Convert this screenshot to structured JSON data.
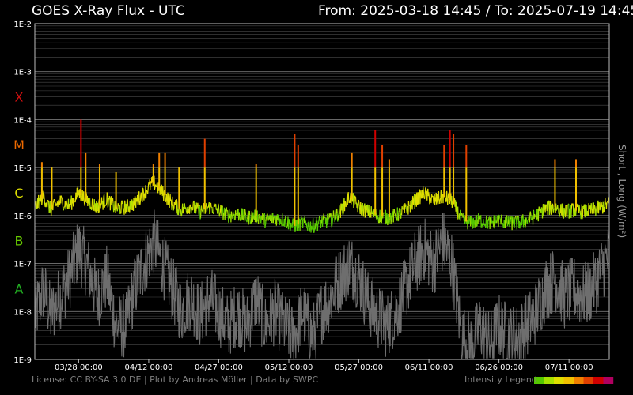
{
  "header": {
    "title": "GOES X-Ray Flux - UTC",
    "range": "From: 2025-03-18 14:45  /  To: 2025-07-19 14:45"
  },
  "footer": {
    "credit": "License: CC BY-SA 3.0 DE | Plot by Andreas Möller | Data by SWPC",
    "legend_label": "Intensity Legend"
  },
  "colors": {
    "background": "#000000",
    "grid": "#4a4a4a",
    "long_channel_scale": [
      "#55c800",
      "#a6e000",
      "#dede00",
      "#f0c000",
      "#f08000",
      "#e04000",
      "#d00000",
      "#b00060"
    ],
    "short_channel": "#6e6e6e",
    "class_colors": {
      "X": "#d01010",
      "M": "#ee6a00",
      "C": "#dddd00",
      "B": "#66c800",
      "A": "#22b022"
    }
  },
  "chart_data": {
    "type": "line",
    "title": "GOES X-Ray Flux - UTC",
    "ylabel": "Short , Long (W/m²)",
    "y_scale": "log",
    "ylim": [
      1e-09,
      0.01
    ],
    "x_range": [
      "2025-03-18 14:45",
      "2025-07-19 14:45"
    ],
    "y_tick_labels": [
      "1E-2",
      "1E-3",
      "1E-4",
      "1E-5",
      "1E-6",
      "1E-7",
      "1E-8",
      "1E-9"
    ],
    "y_tick_values": [
      0.01,
      0.001,
      0.0001,
      1e-05,
      1e-06,
      1e-07,
      1e-08,
      1e-09
    ],
    "flare_classes": [
      {
        "label": "X",
        "value": 0.0003
      },
      {
        "label": "M",
        "value": 3e-05
      },
      {
        "label": "C",
        "value": 3e-06
      },
      {
        "label": "B",
        "value": 3e-07
      },
      {
        "label": "A",
        "value": 3e-08
      }
    ],
    "x_ticks": [
      {
        "label": "03/28 00:00",
        "t": "2025-03-28 00:00"
      },
      {
        "label": "04/12 00:00",
        "t": "2025-04-12 00:00"
      },
      {
        "label": "04/27 00:00",
        "t": "2025-04-27 00:00"
      },
      {
        "label": "05/12 00:00",
        "t": "2025-05-12 00:00"
      },
      {
        "label": "05/27 00:00",
        "t": "2025-05-27 00:00"
      },
      {
        "label": "06/11 00:00",
        "t": "2025-06-11 00:00"
      },
      {
        "label": "06/26 00:00",
        "t": "2025-06-26 00:00"
      },
      {
        "label": "07/11 00:00",
        "t": "2025-07-11 00:00"
      }
    ],
    "grid": true,
    "series": [
      {
        "channel": "long",
        "points": [
          [
            "2025-03-18 14:45",
            1.5e-06
          ],
          [
            "2025-03-20 12:00",
            2.5e-06
          ],
          [
            "2025-03-22 00:00",
            1.3e-06
          ],
          [
            "2025-03-24 00:00",
            2e-06
          ],
          [
            "2025-03-26 00:00",
            1.6e-06
          ],
          [
            "2025-03-28 00:00",
            3e-06
          ],
          [
            "2025-03-30 00:00",
            2e-06
          ],
          [
            "2025-04-01 00:00",
            1.5e-06
          ],
          [
            "2025-04-03 00:00",
            2.2e-06
          ],
          [
            "2025-04-05 00:00",
            1.4e-06
          ],
          [
            "2025-04-07 00:00",
            1.5e-06
          ],
          [
            "2025-04-09 00:00",
            1.8e-06
          ],
          [
            "2025-04-11 00:00",
            3e-06
          ],
          [
            "2025-04-13 00:00",
            5e-06
          ],
          [
            "2025-04-15 00:00",
            3e-06
          ],
          [
            "2025-04-17 00:00",
            1.8e-06
          ],
          [
            "2025-04-19 00:00",
            1.3e-06
          ],
          [
            "2025-04-21 00:00",
            1.6e-06
          ],
          [
            "2025-04-23 00:00",
            1.2e-06
          ],
          [
            "2025-04-25 00:00",
            1.5e-06
          ],
          [
            "2025-04-27 00:00",
            1.3e-06
          ],
          [
            "2025-04-29 00:00",
            1e-06
          ],
          [
            "2025-05-01 00:00",
            1.1e-06
          ],
          [
            "2025-05-03 00:00",
            9e-07
          ],
          [
            "2025-05-05 00:00",
            1e-06
          ],
          [
            "2025-05-07 00:00",
            8e-07
          ],
          [
            "2025-05-09 00:00",
            9e-07
          ],
          [
            "2025-05-11 00:00",
            8e-07
          ],
          [
            "2025-05-13 00:00",
            6e-07
          ],
          [
            "2025-05-15 00:00",
            7e-07
          ],
          [
            "2025-05-17 00:00",
            6e-07
          ],
          [
            "2025-05-19 00:00",
            7.5e-07
          ],
          [
            "2025-05-21 00:00",
            8e-07
          ],
          [
            "2025-05-23 00:00",
            1.2e-06
          ],
          [
            "2025-05-25 00:00",
            2.5e-06
          ],
          [
            "2025-05-27 00:00",
            1.5e-06
          ],
          [
            "2025-05-29 00:00",
            1.2e-06
          ],
          [
            "2025-05-31 00:00",
            1e-06
          ],
          [
            "2025-06-02 00:00",
            9e-07
          ],
          [
            "2025-06-04 00:00",
            1e-06
          ],
          [
            "2025-06-06 00:00",
            1.3e-06
          ],
          [
            "2025-06-08 00:00",
            2e-06
          ],
          [
            "2025-06-10 00:00",
            3e-06
          ],
          [
            "2025-06-12 00:00",
            2e-06
          ],
          [
            "2025-06-14 00:00",
            2.5e-06
          ],
          [
            "2025-06-16 00:00",
            2e-06
          ],
          [
            "2025-06-18 00:00",
            8e-07
          ],
          [
            "2025-06-20 00:00",
            7e-07
          ],
          [
            "2025-06-22 00:00",
            8e-07
          ],
          [
            "2025-06-24 00:00",
            7e-07
          ],
          [
            "2025-06-26 00:00",
            8e-07
          ],
          [
            "2025-06-28 00:00",
            7e-07
          ],
          [
            "2025-06-30 00:00",
            7e-07
          ],
          [
            "2025-07-02 00:00",
            8e-07
          ],
          [
            "2025-07-04 00:00",
            1e-06
          ],
          [
            "2025-07-06 00:00",
            1.4e-06
          ],
          [
            "2025-07-08 00:00",
            1.5e-06
          ],
          [
            "2025-07-10 00:00",
            1.2e-06
          ],
          [
            "2025-07-12 00:00",
            1.3e-06
          ],
          [
            "2025-07-14 00:00",
            1.2e-06
          ],
          [
            "2025-07-16 00:00",
            1.3e-06
          ],
          [
            "2025-07-18 00:00",
            1.5e-06
          ],
          [
            "2025-07-19 14:45",
            1.8e-06
          ]
        ]
      },
      {
        "channel": "short",
        "points": [
          [
            "2025-03-18 14:45",
            8e-09
          ],
          [
            "2025-03-20 12:00",
            3e-08
          ],
          [
            "2025-03-22 00:00",
            8e-09
          ],
          [
            "2025-03-24 00:00",
            2e-08
          ],
          [
            "2025-03-26 00:00",
            5e-08
          ],
          [
            "2025-03-28 00:00",
            2e-07
          ],
          [
            "2025-03-30 00:00",
            8e-08
          ],
          [
            "2025-04-01 00:00",
            2e-08
          ],
          [
            "2025-04-03 00:00",
            5e-08
          ],
          [
            "2025-04-05 00:00",
            5e-09
          ],
          [
            "2025-04-07 00:00",
            5e-09
          ],
          [
            "2025-04-09 00:00",
            3e-08
          ],
          [
            "2025-04-11 00:00",
            1e-07
          ],
          [
            "2025-04-13 00:00",
            3e-07
          ],
          [
            "2025-04-15 00:00",
            1e-07
          ],
          [
            "2025-04-17 00:00",
            3e-08
          ],
          [
            "2025-04-19 00:00",
            1e-08
          ],
          [
            "2025-04-21 00:00",
            2e-08
          ],
          [
            "2025-04-23 00:00",
            8e-09
          ],
          [
            "2025-04-25 00:00",
            2e-08
          ],
          [
            "2025-04-27 00:00",
            1e-08
          ],
          [
            "2025-04-29 00:00",
            5e-09
          ],
          [
            "2025-05-01 00:00",
            1e-08
          ],
          [
            "2025-05-03 00:00",
            5e-09
          ],
          [
            "2025-05-05 00:00",
            2e-08
          ],
          [
            "2025-05-07 00:00",
            5e-09
          ],
          [
            "2025-05-09 00:00",
            1e-08
          ],
          [
            "2025-05-11 00:00",
            5e-09
          ],
          [
            "2025-05-13 00:00",
            3e-09
          ],
          [
            "2025-05-15 00:00",
            1e-08
          ],
          [
            "2025-05-17 00:00",
            3e-09
          ],
          [
            "2025-05-19 00:00",
            1e-08
          ],
          [
            "2025-05-21 00:00",
            2e-08
          ],
          [
            "2025-05-23 00:00",
            5e-08
          ],
          [
            "2025-05-25 00:00",
            1e-07
          ],
          [
            "2025-05-27 00:00",
            5e-08
          ],
          [
            "2025-05-29 00:00",
            1.5e-08
          ],
          [
            "2025-05-31 00:00",
            8e-09
          ],
          [
            "2025-06-02 00:00",
            5e-09
          ],
          [
            "2025-06-04 00:00",
            1e-08
          ],
          [
            "2025-06-06 00:00",
            3e-08
          ],
          [
            "2025-06-08 00:00",
            1e-07
          ],
          [
            "2025-06-10 00:00",
            2e-07
          ],
          [
            "2025-06-12 00:00",
            1e-07
          ],
          [
            "2025-06-14 00:00",
            3e-07
          ],
          [
            "2025-06-16 00:00",
            1e-07
          ],
          [
            "2025-06-18 00:00",
            3e-09
          ],
          [
            "2025-06-20 00:00",
            2e-09
          ],
          [
            "2025-06-22 00:00",
            5e-09
          ],
          [
            "2025-06-24 00:00",
            2e-09
          ],
          [
            "2025-06-26 00:00",
            5e-09
          ],
          [
            "2025-06-28 00:00",
            3e-09
          ],
          [
            "2025-06-30 00:00",
            3e-09
          ],
          [
            "2025-07-02 00:00",
            5e-09
          ],
          [
            "2025-07-04 00:00",
            1e-08
          ],
          [
            "2025-07-06 00:00",
            3e-08
          ],
          [
            "2025-07-08 00:00",
            5e-08
          ],
          [
            "2025-07-10 00:00",
            2e-08
          ],
          [
            "2025-07-12 00:00",
            3e-08
          ],
          [
            "2025-07-14 00:00",
            2e-08
          ],
          [
            "2025-07-16 00:00",
            3e-08
          ],
          [
            "2025-07-18 00:00",
            8e-08
          ],
          [
            "2025-07-19 14:45",
            1.5e-07
          ]
        ]
      }
    ],
    "flares": [
      {
        "t": "2025-03-20 03:00",
        "peak": 1.3e-05
      },
      {
        "t": "2025-03-22 06:00",
        "peak": 1e-05
      },
      {
        "t": "2025-03-28 12:00",
        "peak": 0.0001
      },
      {
        "t": "2025-03-29 12:00",
        "peak": 2e-05
      },
      {
        "t": "2025-04-01 12:00",
        "peak": 1.2e-05
      },
      {
        "t": "2025-04-05 00:00",
        "peak": 8e-06
      },
      {
        "t": "2025-04-13 00:00",
        "peak": 1.2e-05
      },
      {
        "t": "2025-04-14 06:00",
        "peak": 2e-05
      },
      {
        "t": "2025-04-15 12:00",
        "peak": 2e-05
      },
      {
        "t": "2025-04-18 12:00",
        "peak": 1e-05
      },
      {
        "t": "2025-04-24 00:00",
        "peak": 4e-05
      },
      {
        "t": "2025-05-05 00:00",
        "peak": 1.2e-05
      },
      {
        "t": "2025-05-13 06:00",
        "peak": 5e-05
      },
      {
        "t": "2025-05-14 00:00",
        "peak": 3e-05
      },
      {
        "t": "2025-05-25 12:00",
        "peak": 2e-05
      },
      {
        "t": "2025-05-30 12:00",
        "peak": 6e-05
      },
      {
        "t": "2025-06-01 00:00",
        "peak": 3e-05
      },
      {
        "t": "2025-06-02 12:00",
        "peak": 1.5e-05
      },
      {
        "t": "2025-06-14 06:00",
        "peak": 3e-05
      },
      {
        "t": "2025-06-15 12:00",
        "peak": 6e-05
      },
      {
        "t": "2025-06-16 06:00",
        "peak": 5e-05
      },
      {
        "t": "2025-06-19 00:00",
        "peak": 3e-05
      },
      {
        "t": "2025-07-08 00:00",
        "peak": 1.5e-05
      },
      {
        "t": "2025-07-12 12:00",
        "peak": 1.5e-05
      }
    ]
  }
}
